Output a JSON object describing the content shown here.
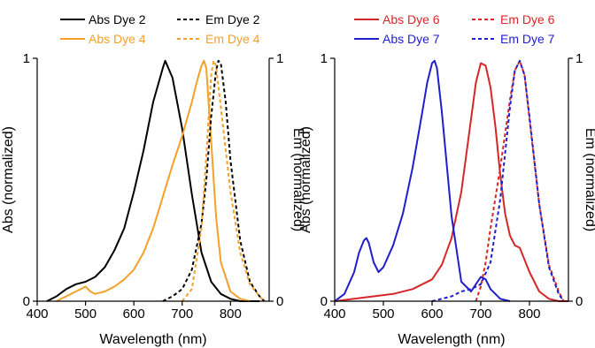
{
  "chart_data": [
    {
      "type": "line",
      "xlabel": "Wavelength (nm)",
      "ylabel": "Abs (normalized)",
      "y2label": "Em (normalized)",
      "xlim": [
        400,
        880
      ],
      "ylim": [
        0,
        1
      ],
      "y2lim": [
        0,
        1
      ],
      "xticks": [
        "400",
        "500",
        "600",
        "700",
        "800"
      ],
      "yticks": [
        "0",
        "1"
      ],
      "y2ticks": [
        "0",
        "1"
      ],
      "grid": false,
      "legend": "top",
      "series": [
        {
          "name": "Abs Dye 2",
          "axis": "left",
          "color": "#000000",
          "dash": "solid",
          "x": [
            420,
            440,
            460,
            480,
            500,
            520,
            540,
            560,
            580,
            600,
            620,
            640,
            660,
            665,
            680,
            700,
            720,
            740,
            760,
            780,
            800,
            820,
            840,
            860
          ],
          "y": [
            0.0,
            0.02,
            0.05,
            0.07,
            0.08,
            0.1,
            0.14,
            0.21,
            0.3,
            0.45,
            0.62,
            0.82,
            0.96,
            0.99,
            0.92,
            0.71,
            0.44,
            0.2,
            0.08,
            0.03,
            0.01,
            0.0,
            0.0,
            0.0
          ]
        },
        {
          "name": "Abs Dye 4",
          "axis": "left",
          "color": "#F5A028",
          "dash": "solid",
          "x": [
            440,
            460,
            480,
            490,
            500,
            510,
            520,
            540,
            560,
            580,
            600,
            620,
            640,
            660,
            680,
            700,
            720,
            730,
            740,
            745,
            750,
            760,
            770,
            780,
            800,
            820,
            840
          ],
          "y": [
            0.0,
            0.02,
            0.04,
            0.05,
            0.06,
            0.04,
            0.03,
            0.04,
            0.06,
            0.09,
            0.13,
            0.2,
            0.3,
            0.43,
            0.56,
            0.68,
            0.82,
            0.9,
            0.97,
            0.99,
            0.96,
            0.66,
            0.35,
            0.16,
            0.04,
            0.01,
            0.0
          ]
        },
        {
          "name": "Em Dye 2",
          "axis": "right",
          "color": "#000000",
          "dash": "dashed",
          "x": [
            660,
            680,
            700,
            720,
            740,
            750,
            760,
            770,
            775,
            780,
            790,
            800,
            820,
            840,
            860,
            870
          ],
          "y": [
            0.0,
            0.02,
            0.05,
            0.13,
            0.32,
            0.5,
            0.76,
            0.95,
            0.99,
            0.98,
            0.82,
            0.58,
            0.25,
            0.08,
            0.02,
            0.0
          ]
        },
        {
          "name": "Em Dye 4",
          "axis": "right",
          "color": "#F5A028",
          "dash": "dashed",
          "x": [
            700,
            720,
            740,
            750,
            760,
            765,
            770,
            780,
            800,
            820,
            840,
            860,
            870
          ],
          "y": [
            0.0,
            0.05,
            0.3,
            0.6,
            0.93,
            0.99,
            0.97,
            0.8,
            0.45,
            0.2,
            0.07,
            0.02,
            0.0
          ]
        }
      ]
    },
    {
      "type": "line",
      "xlabel": "Wavelength (nm)",
      "ylabel": "Abs (normalized)",
      "y2label": "Em (normalized)",
      "xlim": [
        400,
        880
      ],
      "ylim": [
        0,
        1
      ],
      "y2lim": [
        0,
        1
      ],
      "xticks": [
        "400",
        "500",
        "600",
        "700",
        "800"
      ],
      "yticks": [
        "0",
        "1"
      ],
      "y2ticks": [
        "0",
        "1"
      ],
      "grid": false,
      "legend": "top",
      "series": [
        {
          "name": "Abs Dye 6",
          "axis": "left",
          "color": "#D62728",
          "dash": "solid",
          "x": [
            400,
            440,
            480,
            520,
            560,
            600,
            620,
            640,
            660,
            680,
            690,
            700,
            710,
            720,
            730,
            740,
            750,
            760,
            770,
            780,
            790,
            800,
            820,
            840,
            860,
            880
          ],
          "y": [
            0.0,
            0.01,
            0.02,
            0.03,
            0.05,
            0.09,
            0.15,
            0.26,
            0.45,
            0.75,
            0.9,
            0.98,
            0.97,
            0.88,
            0.72,
            0.52,
            0.36,
            0.27,
            0.23,
            0.22,
            0.17,
            0.12,
            0.04,
            0.01,
            0.0,
            0.0
          ]
        },
        {
          "name": "Abs Dye 7",
          "axis": "left",
          "color": "#1F1FCC",
          "dash": "solid",
          "x": [
            400,
            420,
            440,
            450,
            460,
            465,
            470,
            480,
            490,
            500,
            520,
            540,
            560,
            580,
            590,
            600,
            605,
            610,
            620,
            640,
            660,
            680,
            690,
            700,
            710,
            720,
            740,
            760
          ],
          "y": [
            0.0,
            0.03,
            0.12,
            0.2,
            0.25,
            0.26,
            0.24,
            0.16,
            0.12,
            0.14,
            0.23,
            0.36,
            0.55,
            0.78,
            0.9,
            0.98,
            0.99,
            0.96,
            0.78,
            0.35,
            0.08,
            0.04,
            0.07,
            0.1,
            0.09,
            0.05,
            0.01,
            0.0
          ]
        },
        {
          "name": "Em Dye 6",
          "axis": "right",
          "color": "#D62728",
          "dash": "dashed",
          "x": [
            690,
            700,
            710,
            720,
            740,
            760,
            770,
            780,
            790,
            800,
            820,
            840,
            860,
            870
          ],
          "y": [
            0.0,
            0.06,
            0.16,
            0.3,
            0.55,
            0.83,
            0.95,
            0.99,
            0.93,
            0.75,
            0.4,
            0.15,
            0.04,
            0.0
          ]
        },
        {
          "name": "Em Dye 7",
          "axis": "right",
          "color": "#1F1FCC",
          "dash": "dashed",
          "x": [
            600,
            620,
            640,
            660,
            680,
            700,
            720,
            740,
            760,
            770,
            780,
            790,
            800,
            820,
            840,
            860,
            870
          ],
          "y": [
            0.0,
            0.01,
            0.02,
            0.04,
            0.05,
            0.07,
            0.16,
            0.42,
            0.8,
            0.95,
            0.99,
            0.93,
            0.76,
            0.4,
            0.14,
            0.03,
            0.0
          ]
        }
      ]
    }
  ]
}
